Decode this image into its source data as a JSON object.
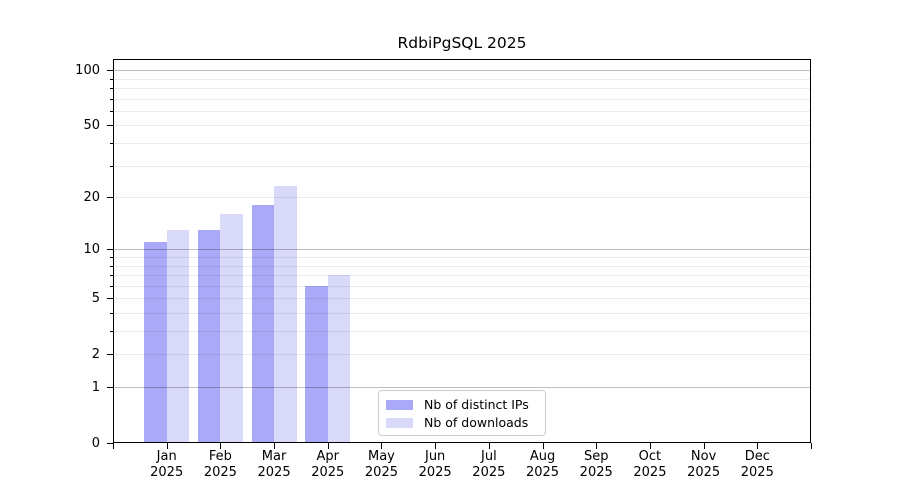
{
  "title": "RdbiPgSQL 2025",
  "legend": {
    "items": [
      {
        "label": "Nb of distinct IPs",
        "color": "#a9a9f8"
      },
      {
        "label": "Nb of downloads",
        "color": "#d9d9fa"
      }
    ]
  },
  "chart_data": {
    "type": "bar",
    "title": "RdbiPgSQL 2025",
    "categories": [
      "Jan",
      "Feb",
      "Mar",
      "Apr",
      "May",
      "Jun",
      "Jul",
      "Aug",
      "Sep",
      "Oct",
      "Nov",
      "Dec"
    ],
    "x_sublabel": "2025",
    "series": [
      {
        "name": "Nb of distinct IPs",
        "color": "#a9a9f8",
        "values": [
          11,
          13,
          18,
          6,
          0,
          0,
          0,
          0,
          0,
          0,
          0,
          0
        ]
      },
      {
        "name": "Nb of downloads",
        "color": "#d9d9fa",
        "values": [
          13,
          16,
          23,
          7,
          0,
          0,
          0,
          0,
          0,
          0,
          0,
          0
        ]
      }
    ],
    "y_scale": "log10(value+1)",
    "ylim": [
      0,
      115
    ],
    "y_tick_labels": [
      0,
      1,
      2,
      5,
      10,
      20,
      50,
      100
    ],
    "y_major_gridlines": [
      1,
      10,
      100
    ],
    "y_minor_gridlines": [
      2,
      3,
      4,
      5,
      6,
      7,
      8,
      9,
      20,
      30,
      40,
      50,
      60,
      70,
      80,
      90
    ],
    "grid": true,
    "legend_position": "lower center-right inside plot",
    "colors": {
      "axis": "#000000",
      "major_grid": "#c3c3c3",
      "minor_grid": "#ebebeb",
      "background": "#ffffff"
    }
  }
}
